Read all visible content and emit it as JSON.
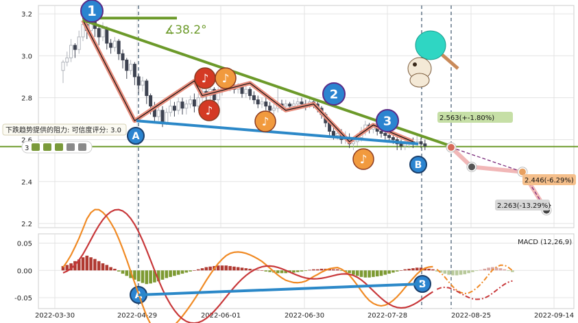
{
  "chart_data": [
    {
      "type": "candlestick",
      "x_tick_labels": [
        "2022-03-30",
        "2022-04-29",
        "2022-06-01",
        "2022-06-30",
        "2022-07-28",
        "2022-08-25",
        "2022-09-14"
      ],
      "y_tick_labels": [
        "3.2",
        "3.0",
        "2.8",
        "2.6",
        "2.4",
        "2.2"
      ],
      "ylim": [
        2.18,
        3.24
      ],
      "grid": true,
      "candles": [
        [
          2.93,
          2.97,
          2.87,
          2.98
        ],
        [
          2.97,
          2.99,
          2.95,
          3.02
        ],
        [
          2.99,
          3.05,
          2.97,
          3.08
        ],
        [
          3.05,
          3.03,
          2.99,
          3.06
        ],
        [
          3.03,
          3.09,
          3.01,
          3.12
        ],
        [
          3.09,
          3.15,
          3.07,
          3.18
        ],
        [
          3.15,
          3.12,
          3.08,
          3.17
        ],
        [
          3.12,
          3.17,
          3.1,
          3.19
        ],
        [
          3.17,
          3.13,
          3.09,
          3.18
        ],
        [
          3.13,
          3.09,
          3.05,
          3.15
        ],
        [
          3.09,
          3.13,
          3.07,
          3.16
        ],
        [
          3.13,
          3.06,
          3.03,
          3.14
        ],
        [
          3.06,
          3.04,
          3.01,
          3.08
        ],
        [
          3.04,
          3.07,
          3.02,
          3.09
        ],
        [
          3.07,
          3.01,
          2.98,
          3.08
        ],
        [
          3.01,
          2.98,
          2.94,
          3.03
        ],
        [
          2.98,
          2.93,
          2.89,
          2.99
        ],
        [
          2.93,
          2.96,
          2.91,
          2.98
        ],
        [
          2.96,
          2.9,
          2.86,
          2.97
        ],
        [
          2.9,
          2.86,
          2.82,
          2.91
        ],
        [
          2.86,
          2.88,
          2.83,
          2.9
        ],
        [
          2.88,
          2.81,
          2.77,
          2.89
        ],
        [
          2.81,
          2.76,
          2.72,
          2.82
        ],
        [
          2.76,
          2.71,
          2.68,
          2.78
        ],
        [
          2.71,
          2.74,
          2.69,
          2.77
        ],
        [
          2.74,
          2.68,
          2.66,
          2.76
        ],
        [
          2.68,
          2.73,
          2.67,
          2.75
        ],
        [
          2.73,
          2.76,
          2.71,
          2.79
        ],
        [
          2.76,
          2.74,
          2.71,
          2.78
        ],
        [
          2.74,
          2.78,
          2.72,
          2.8
        ],
        [
          2.78,
          2.75,
          2.72,
          2.8
        ],
        [
          2.75,
          2.77,
          2.72,
          2.79
        ],
        [
          2.77,
          2.79,
          2.75,
          2.81
        ],
        [
          2.79,
          2.76,
          2.73,
          2.82
        ],
        [
          2.76,
          2.8,
          2.74,
          2.82
        ],
        [
          2.8,
          2.83,
          2.78,
          2.85
        ],
        [
          2.83,
          2.81,
          2.78,
          2.84
        ],
        [
          2.81,
          2.84,
          2.79,
          2.86
        ],
        [
          2.84,
          2.79,
          2.77,
          2.85
        ],
        [
          2.79,
          2.83,
          2.77,
          2.85
        ],
        [
          2.83,
          2.87,
          2.81,
          2.89
        ],
        [
          2.87,
          2.85,
          2.83,
          2.89
        ],
        [
          2.85,
          2.86,
          2.83,
          2.88
        ],
        [
          2.86,
          2.84,
          2.82,
          2.88
        ],
        [
          2.84,
          2.85,
          2.82,
          2.87
        ],
        [
          2.85,
          2.82,
          2.8,
          2.86
        ],
        [
          2.82,
          2.84,
          2.8,
          2.86
        ],
        [
          2.84,
          2.81,
          2.79,
          2.85
        ],
        [
          2.81,
          2.79,
          2.77,
          2.83
        ],
        [
          2.79,
          2.77,
          2.75,
          2.81
        ],
        [
          2.77,
          2.78,
          2.75,
          2.8
        ],
        [
          2.78,
          2.76,
          2.74,
          2.8
        ],
        [
          2.76,
          2.74,
          2.72,
          2.78
        ],
        [
          2.74,
          2.75,
          2.72,
          2.77
        ],
        [
          2.75,
          2.77,
          2.73,
          2.85
        ],
        [
          2.77,
          2.76,
          2.74,
          2.79
        ],
        [
          2.76,
          2.77,
          2.74,
          2.79
        ],
        [
          2.77,
          2.76,
          2.74,
          2.78
        ],
        [
          2.76,
          2.77,
          2.75,
          2.79
        ],
        [
          2.77,
          2.78,
          2.75,
          2.8
        ],
        [
          2.78,
          2.77,
          2.75,
          2.8
        ],
        [
          2.77,
          2.76,
          2.74,
          2.79
        ],
        [
          2.76,
          2.78,
          2.75,
          2.8
        ],
        [
          2.78,
          2.77,
          2.75,
          2.8
        ],
        [
          2.77,
          2.75,
          2.73,
          2.79
        ],
        [
          2.75,
          2.72,
          2.7,
          2.76
        ],
        [
          2.72,
          2.68,
          2.66,
          2.73
        ],
        [
          2.68,
          2.64,
          2.62,
          2.7
        ],
        [
          2.64,
          2.62,
          2.6,
          2.66
        ],
        [
          2.62,
          2.63,
          2.6,
          2.66
        ],
        [
          2.63,
          2.6,
          2.58,
          2.65
        ],
        [
          2.6,
          2.61,
          2.58,
          2.64
        ],
        [
          2.61,
          2.58,
          2.56,
          2.63
        ],
        [
          2.58,
          2.59,
          2.55,
          2.61
        ],
        [
          2.59,
          2.61,
          2.57,
          2.63
        ],
        [
          2.61,
          2.64,
          2.59,
          2.66
        ],
        [
          2.64,
          2.67,
          2.62,
          2.69
        ],
        [
          2.67,
          2.65,
          2.63,
          2.68
        ],
        [
          2.65,
          2.66,
          2.63,
          2.68
        ],
        [
          2.66,
          2.64,
          2.62,
          2.67
        ],
        [
          2.64,
          2.63,
          2.61,
          2.66
        ],
        [
          2.63,
          2.62,
          2.6,
          2.65
        ],
        [
          2.62,
          2.61,
          2.59,
          2.64
        ],
        [
          2.61,
          2.6,
          2.58,
          2.63
        ],
        [
          2.6,
          2.58,
          2.55,
          2.62
        ],
        [
          2.58,
          2.57,
          2.55,
          2.6
        ],
        [
          2.57,
          2.58,
          2.55,
          2.6
        ],
        [
          2.58,
          2.59,
          2.56,
          2.61
        ],
        [
          2.59,
          2.58,
          2.56,
          2.61
        ],
        [
          2.58,
          2.59,
          2.57,
          2.62
        ],
        [
          2.59,
          2.58,
          2.56,
          2.61
        ],
        [
          2.58,
          2.57,
          2.55,
          2.6
        ]
      ],
      "annotations": {
        "angle_label": "∡38.2°",
        "resistance_text": "下跌趋势提供的阻力: 可信度评分: 3.0",
        "star_rating_label": "3",
        "wave_labels": [
          "1",
          "2",
          "3"
        ],
        "point_labels": [
          "A",
          "B"
        ],
        "projections": [
          {
            "label": "2.563(+-1.80%)",
            "value": 2.563,
            "color": "#c6dfa6"
          },
          {
            "label": "2.446(-6.29%)",
            "value": 2.446,
            "color": "#f5bf8b"
          },
          {
            "label": "2.263(-13.29%)",
            "value": 2.263,
            "color": "#d7d7d7"
          }
        ]
      }
    },
    {
      "type": "macd",
      "legend": "MACD (12,26,9)",
      "y_tick_labels": [
        "0.05",
        "0.00",
        "-0.05"
      ],
      "ylim": [
        -0.07,
        0.067
      ],
      "histogram": [
        0.008,
        0.01,
        0.013,
        0.017,
        0.02,
        0.024,
        0.027,
        0.024,
        0.021,
        0.017,
        0.013,
        0.01,
        0.006,
        0.003,
        -0.002,
        -0.006,
        -0.01,
        -0.014,
        -0.017,
        -0.02,
        -0.023,
        -0.025,
        -0.024,
        -0.022,
        -0.02,
        -0.017,
        -0.014,
        -0.012,
        -0.01,
        -0.008,
        -0.006,
        -0.004,
        -0.002,
        0.0,
        0.002,
        0.004,
        0.006,
        0.007,
        0.008,
        0.009,
        0.009,
        0.009,
        0.008,
        0.007,
        0.006,
        0.005,
        0.004,
        0.003,
        0.002,
        0.001,
        0.0,
        -0.002,
        -0.003,
        -0.004,
        -0.005,
        -0.005,
        -0.005,
        -0.004,
        -0.004,
        -0.003,
        -0.002,
        -0.001,
        0.001,
        0.002,
        0.002,
        0.003,
        0.003,
        0.003,
        0.002,
        0.002,
        -0.001,
        -0.003,
        -0.005,
        -0.008,
        -0.01,
        -0.012,
        -0.013,
        -0.013,
        -0.012,
        -0.011,
        -0.01,
        -0.008,
        -0.006,
        -0.004,
        -0.002,
        0.0,
        0.002,
        0.003,
        0.004,
        0.005,
        0.005,
        0.004,
        0.003,
        0.002
      ],
      "histogram_forecast": [
        -0.002,
        -0.004,
        -0.006,
        -0.008,
        -0.009,
        -0.009,
        -0.008,
        -0.007,
        -0.005,
        -0.003,
        -0.001,
        0.001,
        0.003,
        0.005,
        0.006,
        0.005,
        0.004,
        0.002,
        -0.001,
        -0.003
      ]
    }
  ]
}
